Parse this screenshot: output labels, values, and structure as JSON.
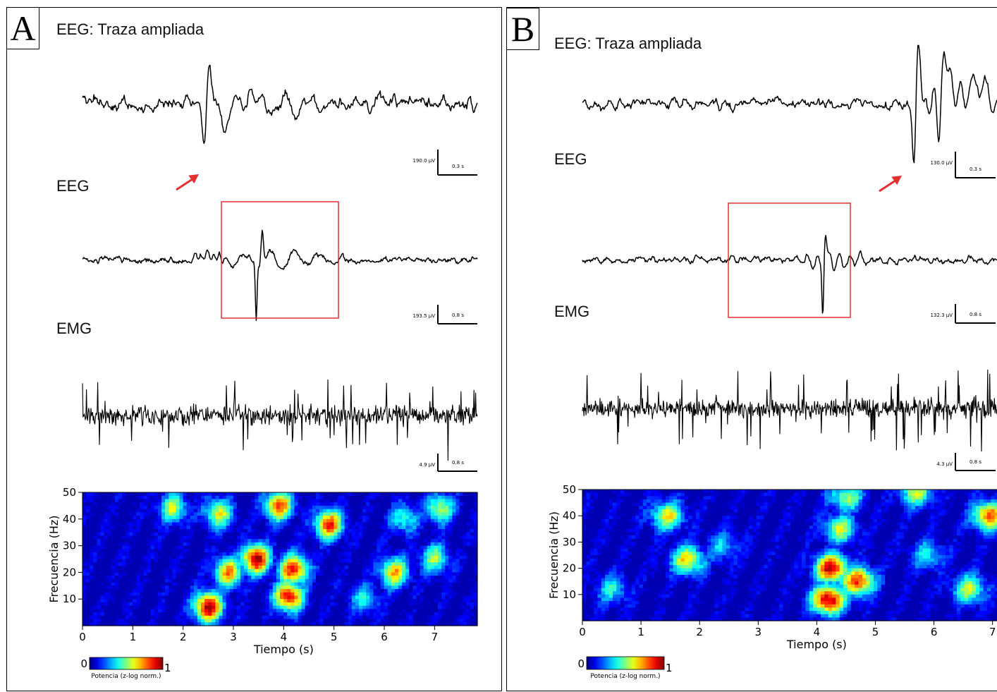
{
  "panels": [
    {
      "letter": "A",
      "title": "EEG: Traza ampliada",
      "trace1_label": "EEG",
      "trace2_label": "EMG",
      "scalebars": [
        {
          "amplitude": "190.0 µV",
          "time": "0.3 s"
        },
        {
          "amplitude": "193.5 µV",
          "time": "0.8 s"
        },
        {
          "amplitude": "4.9 µV",
          "time": "0.8 s"
        }
      ],
      "colorbar": {
        "min": "0",
        "max": "1",
        "label": "Potencia (z-log norm.)"
      }
    },
    {
      "letter": "B",
      "title": "EEG: Traza ampliada",
      "trace1_label": "EEG",
      "trace2_label": "EMG",
      "scalebars": [
        {
          "amplitude": "130.0 µV",
          "time": "0.3 s"
        },
        {
          "amplitude": "132.3 µV",
          "time": "0.8 s"
        },
        {
          "amplitude": "4.3 µV",
          "time": "0.8 s"
        }
      ],
      "colorbar": {
        "min": "0",
        "max": "1",
        "label": "Potencia (z-log norm.)"
      }
    }
  ],
  "colors": {
    "trace": "#000000",
    "highlight_box": "#e03030",
    "arrow": "#e03030"
  },
  "chart_data": [
    {
      "type": "heatmap",
      "panel": "A",
      "xlabel": "Tiempo (s)",
      "ylabel": "Frecuencia (Hz)",
      "xlim": [
        0,
        7.85
      ],
      "ylim": [
        0,
        50
      ],
      "xticks": [
        0,
        1,
        2,
        3,
        4,
        5,
        6,
        7
      ],
      "yticks": [
        10,
        20,
        30,
        40,
        50
      ],
      "colormap": "jet",
      "hotspots": [
        {
          "t": 2.5,
          "f": 7,
          "power": 1.0
        },
        {
          "t": 3.45,
          "f": 25,
          "power": 1.0
        },
        {
          "t": 4.1,
          "f": 11,
          "power": 0.95
        },
        {
          "t": 4.2,
          "f": 21,
          "power": 0.9
        },
        {
          "t": 4.9,
          "f": 38,
          "power": 0.85
        },
        {
          "t": 2.9,
          "f": 20,
          "power": 0.75
        },
        {
          "t": 2.7,
          "f": 42,
          "power": 0.6
        },
        {
          "t": 1.8,
          "f": 44,
          "power": 0.55
        },
        {
          "t": 3.9,
          "f": 45,
          "power": 0.8
        },
        {
          "t": 6.2,
          "f": 20,
          "power": 0.7
        },
        {
          "t": 7.0,
          "f": 25,
          "power": 0.5
        },
        {
          "t": 7.1,
          "f": 44,
          "power": 0.55
        },
        {
          "t": 6.4,
          "f": 40,
          "power": 0.4
        },
        {
          "t": 5.6,
          "f": 10,
          "power": 0.35
        }
      ]
    },
    {
      "type": "heatmap",
      "panel": "B",
      "xlabel": "Tiempo (s)",
      "ylabel": "Frecuencia (Hz)",
      "xlim": [
        0,
        7.1
      ],
      "ylim": [
        0,
        50
      ],
      "xticks": [
        0,
        1,
        2,
        3,
        4,
        5,
        6,
        7
      ],
      "yticks": [
        10,
        20,
        30,
        40,
        50
      ],
      "colormap": "jet",
      "hotspots": [
        {
          "t": 4.2,
          "f": 8,
          "power": 1.0
        },
        {
          "t": 4.25,
          "f": 20,
          "power": 0.95
        },
        {
          "t": 4.7,
          "f": 15,
          "power": 0.85
        },
        {
          "t": 4.4,
          "f": 35,
          "power": 0.55
        },
        {
          "t": 4.5,
          "f": 47,
          "power": 0.5
        },
        {
          "t": 1.45,
          "f": 40,
          "power": 0.6
        },
        {
          "t": 1.8,
          "f": 23,
          "power": 0.65
        },
        {
          "t": 6.95,
          "f": 40,
          "power": 0.8
        },
        {
          "t": 5.7,
          "f": 49,
          "power": 0.55
        },
        {
          "t": 6.6,
          "f": 12,
          "power": 0.55
        },
        {
          "t": 0.5,
          "f": 12,
          "power": 0.35
        },
        {
          "t": 2.4,
          "f": 28,
          "power": 0.3
        },
        {
          "t": 5.9,
          "f": 25,
          "power": 0.35
        }
      ]
    }
  ]
}
